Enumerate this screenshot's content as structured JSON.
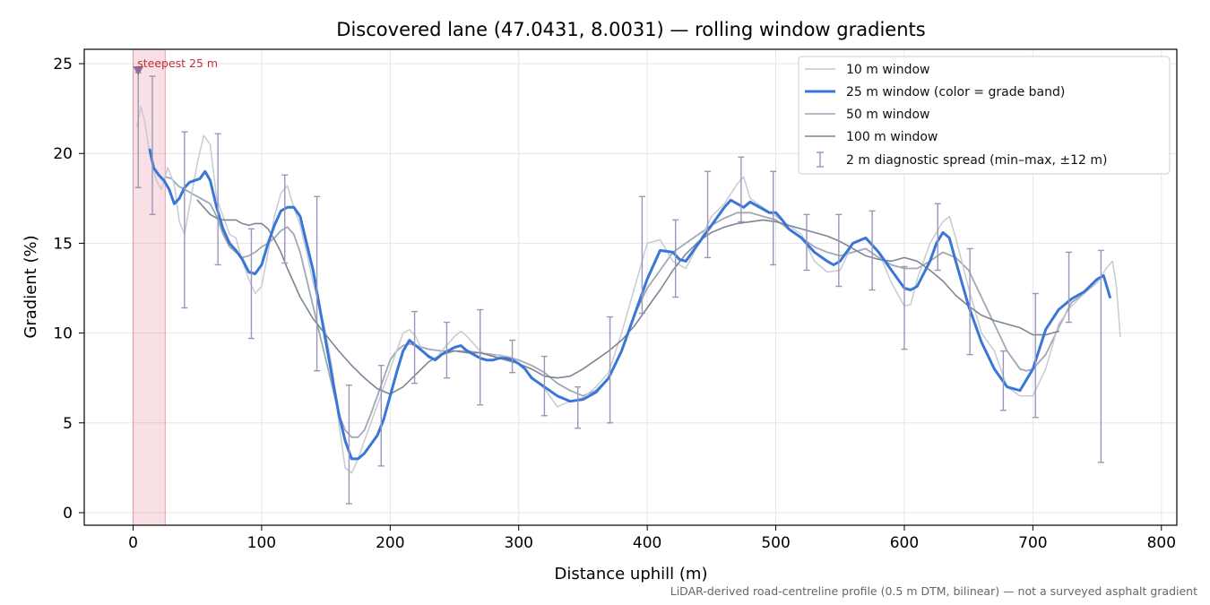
{
  "chart_data": {
    "type": "line",
    "title": "Discovered lane (47.0431, 8.0031) — rolling window gradients",
    "xlabel": "Distance uphill (m)",
    "ylabel": "Gradient (%)",
    "footnote": "LiDAR-derived road-centreline profile (0.5 m DTM, bilinear) — not a surveyed asphalt gradient",
    "xlim": [
      -38,
      812
    ],
    "ylim": [
      -0.7,
      25.8
    ],
    "xticks": [
      0,
      100,
      200,
      300,
      400,
      500,
      600,
      700,
      800
    ],
    "yticks": [
      0,
      5,
      10,
      15,
      20,
      25
    ],
    "grid": true,
    "legend_position": "top-right",
    "highlight": {
      "x_range": [
        0,
        25
      ],
      "label": "steepest 25 m",
      "marker": {
        "x": 4,
        "y": 24.6
      },
      "color": "#d9536b"
    },
    "series": [
      {
        "name": "10 m window",
        "color": "#c4c8d0",
        "x": [
          3,
          6,
          9,
          12,
          15,
          18,
          22,
          27,
          32,
          36,
          40,
          45,
          50,
          55,
          60,
          65,
          70,
          75,
          80,
          85,
          90,
          95,
          100,
          105,
          110,
          115,
          120,
          125,
          130,
          135,
          140,
          145,
          150,
          155,
          160,
          165,
          170,
          175,
          180,
          185,
          190,
          195,
          200,
          205,
          210,
          215,
          220,
          225,
          230,
          235,
          240,
          245,
          250,
          255,
          260,
          265,
          270,
          275,
          280,
          285,
          290,
          295,
          300,
          310,
          320,
          330,
          340,
          350,
          360,
          370,
          380,
          390,
          400,
          410,
          420,
          430,
          440,
          450,
          460,
          470,
          475,
          480,
          490,
          500,
          510,
          520,
          530,
          540,
          550,
          560,
          570,
          580,
          590,
          600,
          605,
          610,
          620,
          630,
          635,
          640,
          650,
          660,
          670,
          680,
          690,
          700,
          710,
          720,
          730,
          740,
          750,
          757,
          762,
          765,
          768
        ],
        "y": [
          21.5,
          22.6,
          21.8,
          20.4,
          19.5,
          18.5,
          18,
          19.2,
          18.3,
          16.2,
          15.5,
          17.5,
          19.5,
          21.0,
          20.5,
          17.5,
          16.5,
          15.5,
          15.3,
          14.0,
          13.0,
          12.2,
          12.6,
          14.5,
          16.5,
          17.8,
          18.2,
          17.0,
          16.0,
          14.5,
          12.8,
          11.5,
          10.0,
          8.0,
          5.0,
          2.5,
          2.2,
          3.0,
          4.0,
          5.0,
          6.0,
          7.0,
          8.0,
          9.0,
          10.0,
          10.2,
          9.8,
          9.0,
          8.6,
          8.5,
          9.0,
          9.4,
          9.8,
          10.1,
          9.8,
          9.4,
          9.0,
          8.8,
          8.7,
          8.8,
          8.7,
          8.5,
          8.3,
          7.6,
          6.9,
          5.9,
          6.2,
          6.4,
          7.0,
          7.8,
          10.0,
          12.5,
          15.0,
          15.2,
          14.0,
          13.6,
          15.0,
          16.5,
          17.2,
          18.3,
          18.7,
          17.5,
          17.0,
          16.5,
          16.0,
          15.5,
          14.0,
          13.4,
          13.5,
          15.0,
          15.3,
          14.5,
          12.8,
          11.5,
          11.6,
          13.0,
          15.0,
          16.2,
          16.5,
          15.3,
          12.5,
          10.0,
          9.0,
          7.0,
          6.5,
          6.5,
          8.0,
          10.5,
          11.5,
          12.2,
          12.8,
          13.6,
          14.0,
          12.6,
          9.8
        ]
      },
      {
        "name": "25 m window (color = grade band)",
        "color": "#3a76d6",
        "x": [
          13,
          16,
          20,
          24,
          28,
          32,
          36,
          40,
          44,
          48,
          52,
          56,
          60,
          65,
          70,
          75,
          80,
          85,
          90,
          95,
          100,
          105,
          110,
          115,
          120,
          125,
          130,
          135,
          140,
          145,
          150,
          155,
          160,
          165,
          170,
          175,
          180,
          185,
          190,
          195,
          200,
          205,
          210,
          215,
          220,
          225,
          230,
          235,
          240,
          245,
          250,
          255,
          260,
          265,
          270,
          275,
          280,
          285,
          290,
          295,
          300,
          305,
          310,
          320,
          330,
          340,
          350,
          360,
          370,
          380,
          390,
          400,
          410,
          420,
          425,
          430,
          440,
          450,
          460,
          465,
          470,
          475,
          480,
          485,
          490,
          495,
          500,
          505,
          510,
          520,
          530,
          540,
          545,
          550,
          560,
          570,
          580,
          590,
          600,
          605,
          610,
          620,
          625,
          630,
          635,
          640,
          650,
          660,
          670,
          680,
          690,
          700,
          710,
          720,
          730,
          740,
          750,
          755,
          760
        ],
        "y": [
          20.2,
          19.2,
          18.8,
          18.5,
          18.0,
          17.2,
          17.5,
          18.1,
          18.4,
          18.5,
          18.6,
          19.0,
          18.5,
          17.0,
          15.8,
          15.0,
          14.6,
          14.1,
          13.4,
          13.3,
          13.8,
          15.0,
          16.0,
          16.8,
          17.0,
          17.0,
          16.5,
          15.0,
          13.5,
          11.5,
          9.5,
          7.5,
          5.5,
          4.0,
          3.0,
          3.0,
          3.3,
          3.8,
          4.3,
          5.2,
          6.5,
          7.8,
          9.0,
          9.6,
          9.3,
          9.0,
          8.7,
          8.5,
          8.8,
          9.0,
          9.2,
          9.3,
          9.0,
          8.8,
          8.6,
          8.5,
          8.5,
          8.6,
          8.6,
          8.5,
          8.3,
          8.0,
          7.5,
          7.0,
          6.5,
          6.2,
          6.3,
          6.7,
          7.5,
          9.0,
          11.0,
          13.0,
          14.6,
          14.5,
          14.1,
          14.0,
          15.0,
          16.0,
          17.0,
          17.4,
          17.2,
          17.0,
          17.3,
          17.1,
          16.9,
          16.7,
          16.7,
          16.3,
          15.8,
          15.3,
          14.5,
          14.0,
          13.8,
          14.0,
          15.0,
          15.3,
          14.5,
          13.5,
          12.5,
          12.4,
          12.6,
          14.0,
          15.0,
          15.6,
          15.3,
          14.0,
          11.5,
          9.5,
          8.0,
          7.0,
          6.8,
          8.0,
          10.2,
          11.3,
          11.9,
          12.3,
          13.0,
          13.2,
          12.0
        ]
      },
      {
        "name": "50 m window",
        "color": "#9aa3b2",
        "x": [
          25,
          30,
          35,
          40,
          45,
          50,
          55,
          60,
          65,
          70,
          75,
          80,
          85,
          90,
          95,
          100,
          105,
          110,
          115,
          120,
          125,
          130,
          135,
          140,
          145,
          150,
          155,
          160,
          165,
          170,
          175,
          180,
          185,
          190,
          195,
          200,
          205,
          210,
          215,
          220,
          225,
          230,
          240,
          250,
          260,
          270,
          280,
          290,
          300,
          310,
          320,
          330,
          340,
          350,
          360,
          370,
          380,
          390,
          400,
          410,
          420,
          430,
          440,
          450,
          460,
          470,
          480,
          490,
          500,
          510,
          520,
          530,
          540,
          550,
          560,
          570,
          580,
          590,
          600,
          610,
          620,
          630,
          640,
          650,
          660,
          670,
          680,
          690,
          695,
          700,
          710,
          720,
          730,
          740
        ],
        "y": [
          18.7,
          18.6,
          18.2,
          18.0,
          17.8,
          17.6,
          17.4,
          17.2,
          16.5,
          15.5,
          14.8,
          14.5,
          14.2,
          14.3,
          14.5,
          14.8,
          15.0,
          15.3,
          15.7,
          15.9,
          15.5,
          14.5,
          13.0,
          11.5,
          10.0,
          8.5,
          7.0,
          5.5,
          4.6,
          4.2,
          4.2,
          4.6,
          5.5,
          6.5,
          7.5,
          8.5,
          9.0,
          9.3,
          9.4,
          9.3,
          9.2,
          9.1,
          9.0,
          9.0,
          9.0,
          8.9,
          8.8,
          8.7,
          8.5,
          8.2,
          7.8,
          7.2,
          6.8,
          6.5,
          6.8,
          7.5,
          9.0,
          11.0,
          12.5,
          13.5,
          14.5,
          15.0,
          15.5,
          16.0,
          16.4,
          16.7,
          16.7,
          16.5,
          16.3,
          15.8,
          15.3,
          14.8,
          14.5,
          14.3,
          14.5,
          14.7,
          14.2,
          13.8,
          13.6,
          13.6,
          14.0,
          14.5,
          14.2,
          13.5,
          12.0,
          10.5,
          9.0,
          8.0,
          7.9,
          8.0,
          8.8,
          10.3,
          11.7,
          12.2
        ]
      },
      {
        "name": "100 m window",
        "color": "#7d8594",
        "x": [
          50,
          55,
          60,
          65,
          70,
          75,
          80,
          85,
          90,
          95,
          100,
          105,
          110,
          115,
          120,
          125,
          130,
          140,
          150,
          160,
          170,
          180,
          190,
          200,
          210,
          220,
          230,
          240,
          250,
          260,
          270,
          280,
          290,
          300,
          310,
          320,
          330,
          340,
          350,
          360,
          370,
          380,
          390,
          400,
          410,
          420,
          430,
          440,
          450,
          460,
          470,
          480,
          490,
          500,
          510,
          520,
          530,
          540,
          550,
          560,
          570,
          580,
          590,
          600,
          610,
          620,
          630,
          640,
          650,
          660,
          670,
          680,
          690,
          700,
          710,
          715,
          720
        ],
        "y": [
          17.4,
          17.0,
          16.6,
          16.4,
          16.3,
          16.3,
          16.3,
          16.1,
          16.0,
          16.1,
          16.1,
          15.8,
          15.2,
          14.5,
          13.6,
          12.8,
          12.0,
          10.8,
          9.9,
          9.0,
          8.2,
          7.5,
          6.9,
          6.6,
          7.0,
          7.7,
          8.4,
          8.8,
          9.0,
          8.9,
          8.9,
          8.7,
          8.5,
          8.3,
          8.0,
          7.6,
          7.5,
          7.6,
          8.0,
          8.5,
          9.0,
          9.6,
          10.4,
          11.4,
          12.4,
          13.5,
          14.4,
          15.1,
          15.6,
          15.9,
          16.1,
          16.2,
          16.3,
          16.2,
          16.0,
          15.8,
          15.6,
          15.4,
          15.1,
          14.7,
          14.3,
          14.1,
          14.0,
          14.2,
          14.0,
          13.5,
          12.9,
          12.1,
          11.5,
          11.0,
          10.7,
          10.5,
          10.3,
          9.9,
          9.9,
          10.0,
          10.1
        ]
      }
    ],
    "diagnostic": {
      "name": "2 m diagnostic spread (min–max, ±12 m)",
      "color": "#9a96ba",
      "x": [
        4,
        15,
        40,
        66,
        92,
        118,
        143,
        168,
        193,
        219,
        244,
        270,
        295,
        320,
        346,
        371,
        396,
        422,
        447,
        473,
        498,
        524,
        549,
        575,
        600,
        626,
        651,
        677,
        702,
        728,
        753
      ],
      "low": [
        18.1,
        16.6,
        11.4,
        13.8,
        9.7,
        13.9,
        7.9,
        0.5,
        2.6,
        7.2,
        7.5,
        6.0,
        7.8,
        5.4,
        4.7,
        5.0,
        11.1,
        12.0,
        14.2,
        16.2,
        13.8,
        13.5,
        12.6,
        12.4,
        9.1,
        13.5,
        8.8,
        5.7,
        5.3,
        10.6,
        2.8
      ],
      "high": [
        24.5,
        24.3,
        21.2,
        21.1,
        15.8,
        18.8,
        17.6,
        7.1,
        8.2,
        11.2,
        10.6,
        11.3,
        9.6,
        8.7,
        7.0,
        10.9,
        17.6,
        16.3,
        19.0,
        19.8,
        19.0,
        16.6,
        16.6,
        16.8,
        13.7,
        17.2,
        14.7,
        9.0,
        12.2,
        14.5,
        14.6
      ]
    }
  }
}
